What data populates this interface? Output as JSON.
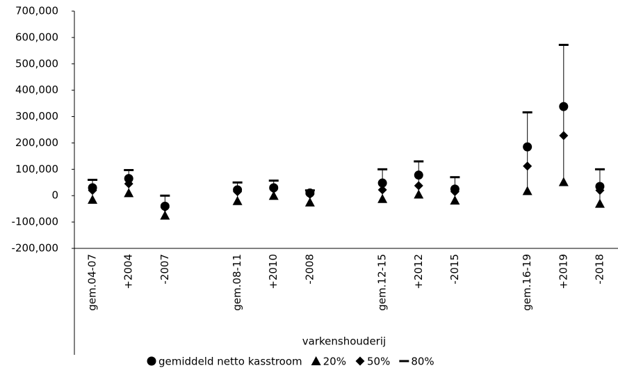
{
  "chart_data": {
    "type": "error-range",
    "x_label": "varkenshouderij",
    "categories": [
      "gem.04-07",
      "+2004",
      "-2007",
      null,
      "gem.08-11",
      "+2010",
      "-2008",
      null,
      "gem.12-15",
      "+2012",
      "-2015",
      null,
      "gem.16-19",
      "+2019",
      "-2018"
    ],
    "series": [
      {
        "name": "gemiddeld netto kasstroom",
        "marker": "circle",
        "color": "#000000",
        "values": [
          30000,
          65000,
          -40000,
          null,
          22000,
          30000,
          10000,
          null,
          48000,
          78000,
          25000,
          null,
          185000,
          338000,
          35000
        ]
      },
      {
        "name": "20%",
        "marker": "triangle",
        "color": "#000000",
        "values": [
          -15000,
          10000,
          -75000,
          null,
          -20000,
          0,
          -25000,
          null,
          -12000,
          5000,
          -18000,
          null,
          18000,
          52000,
          -30000
        ]
      },
      {
        "name": "50%",
        "marker": "diamond",
        "color": "#000000",
        "values": [
          20000,
          45000,
          -45000,
          null,
          15000,
          25000,
          5000,
          null,
          22000,
          38000,
          15000,
          null,
          112000,
          228000,
          20000
        ]
      },
      {
        "name": "80%",
        "marker": "dash",
        "color": "#000000",
        "values": [
          60000,
          97000,
          0,
          null,
          50000,
          57000,
          20000,
          null,
          100000,
          130000,
          70000,
          null,
          316000,
          572000,
          100000
        ]
      }
    ],
    "ylim": [
      -200000,
      700000
    ],
    "yticks": [
      {
        "value": -200000,
        "label": "-200,000"
      },
      {
        "value": -100000,
        "label": "-100,000"
      },
      0,
      {
        "value": 100000,
        "label": "100,000"
      },
      {
        "value": 200000,
        "label": "200,000"
      },
      {
        "value": 300000,
        "label": "300,000"
      },
      {
        "value": 400000,
        "label": "400,000"
      },
      {
        "value": 500000,
        "label": "500,000"
      },
      {
        "value": 600000,
        "label": "600,000"
      },
      {
        "value": 700000,
        "label": "700,000"
      }
    ],
    "grid": false
  }
}
